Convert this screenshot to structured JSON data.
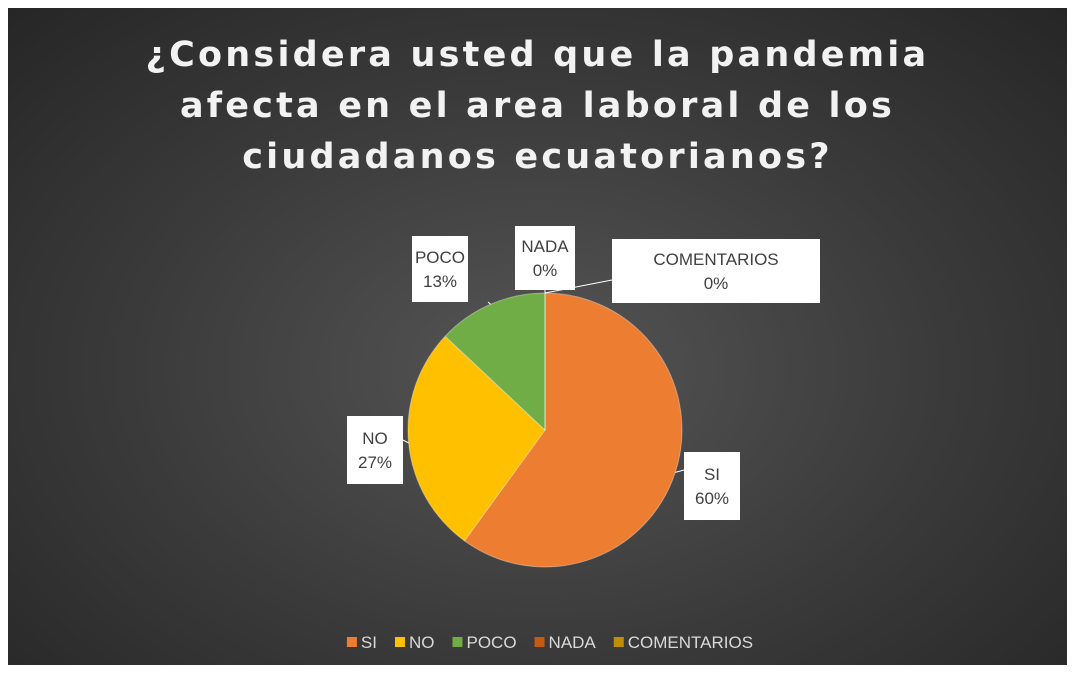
{
  "chart_data": {
    "type": "pie",
    "title": "¿Considera usted que la pandemia afecta en el area laboral de los ciudadanos ecuatorianos?",
    "categories": [
      "SI",
      "NO",
      "POCO",
      "NADA",
      "COMENTARIOS"
    ],
    "values": [
      60,
      27,
      13,
      0,
      0
    ],
    "value_labels": [
      "60%",
      "27%",
      "13%",
      "0%",
      "0%"
    ],
    "colors": [
      "#ed7d31",
      "#ffc000",
      "#70ad47",
      "#c55a11",
      "#bf8f00"
    ],
    "legend": "bottom"
  }
}
